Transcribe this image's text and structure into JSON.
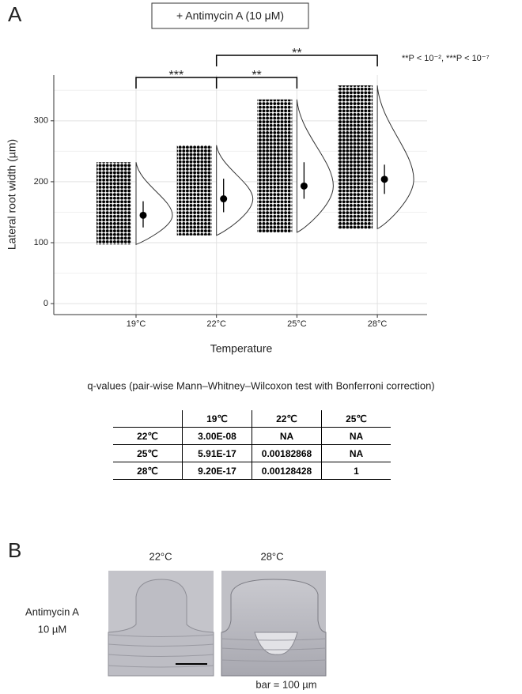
{
  "panel_a_label": "A",
  "condition": "+ Antimycin A (10 μM)",
  "significance_legend": "**P < 10⁻², ***P < 10⁻⁷",
  "chart_data": {
    "type": "raincloud",
    "ylabel": "Lateral root width (µm)",
    "xlabel": "Temperature",
    "categories": [
      "19°C",
      "22°C",
      "25°C",
      "28°C"
    ],
    "min": [
      97,
      112,
      117,
      123
    ],
    "max": [
      232,
      260,
      335,
      358
    ],
    "center": [
      145,
      172,
      193,
      204
    ],
    "ci_low": [
      125,
      150,
      172,
      180
    ],
    "ci_high": [
      168,
      205,
      232,
      228
    ],
    "ylim": [
      -18,
      375
    ],
    "yticks": [
      0,
      100,
      200,
      300
    ],
    "minor_yticks": [
      50,
      150,
      250,
      350
    ],
    "grid": true,
    "color": "#000000",
    "brackets": [
      {
        "from": 0,
        "to": 1,
        "label": "***"
      },
      {
        "from": 1,
        "to": 2,
        "label": "**"
      },
      {
        "from": 1,
        "to": 3,
        "label": "**"
      }
    ]
  },
  "table": {
    "caption": "q-values (pair-wise Mann–Whitney–Wilcoxon test with Bonferroni correction)",
    "rows": [
      [
        "",
        "19℃",
        "22℃",
        "25℃"
      ],
      [
        "22℃",
        "3.00E-08",
        "NA",
        "NA"
      ],
      [
        "25℃",
        "5.91E-17",
        "0.00182868",
        "NA"
      ],
      [
        "28℃",
        "9.20E-17",
        "0.00128428",
        "1"
      ]
    ]
  },
  "panel_b": {
    "label": "B",
    "columns": [
      "22°C",
      "28°C"
    ],
    "row_label": [
      "Antimycin A",
      "10 µM"
    ],
    "scale_note": "bar = 100 µm"
  }
}
